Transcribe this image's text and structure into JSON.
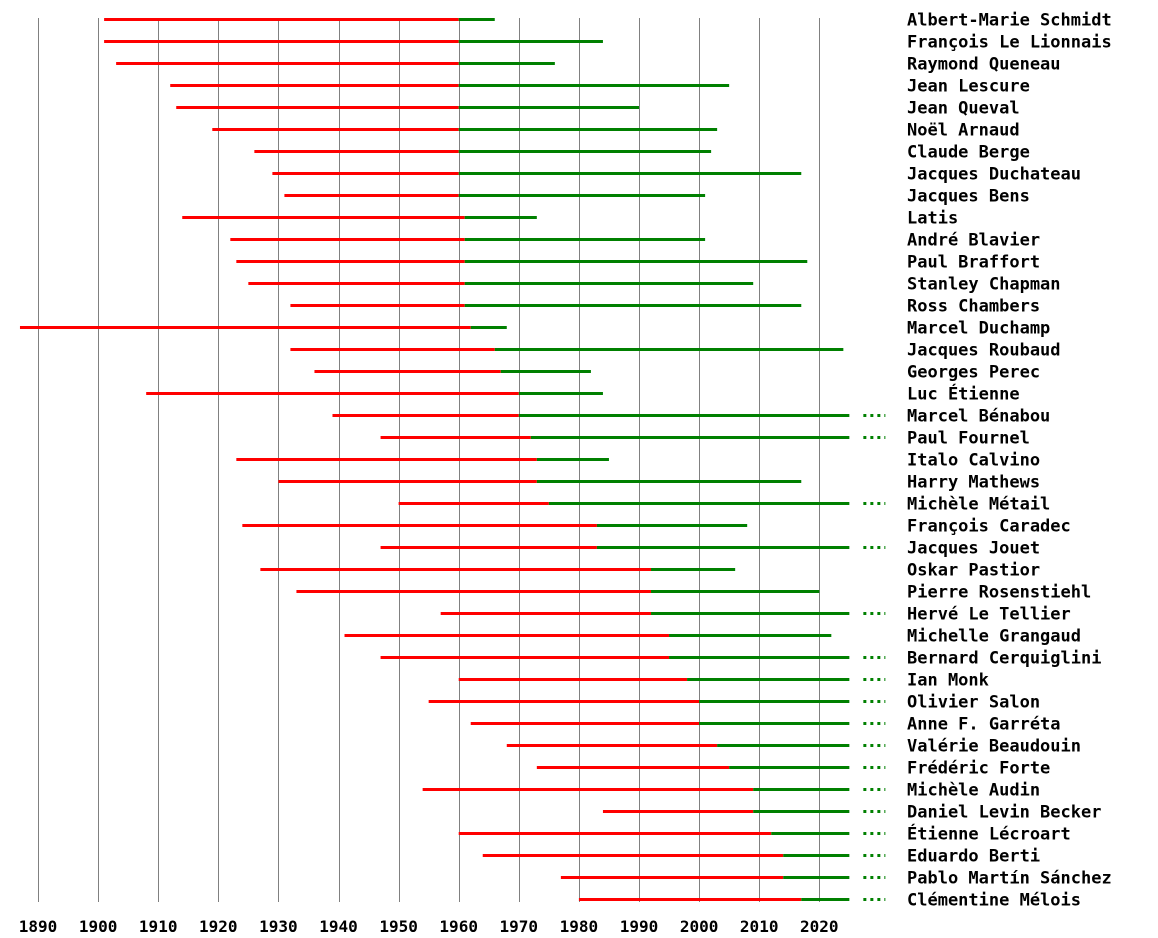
{
  "chart_data": {
    "type": "timeline",
    "x_ticks": [
      1890,
      1900,
      1910,
      1920,
      1930,
      1940,
      1950,
      1960,
      1970,
      1980,
      1990,
      2000,
      2010,
      2020
    ],
    "xlim": [
      1886,
      2025
    ],
    "grid": true,
    "colors": {
      "before_joining": "#ff0000",
      "member": "#008000"
    },
    "rows": [
      {
        "name": "Albert-Marie Schmidt",
        "birth": 1901,
        "joined": 1960,
        "died": 1966,
        "living": false
      },
      {
        "name": "François Le Lionnais",
        "birth": 1901,
        "joined": 1960,
        "died": 1984,
        "living": false
      },
      {
        "name": "Raymond Queneau",
        "birth": 1903,
        "joined": 1960,
        "died": 1976,
        "living": false
      },
      {
        "name": "Jean Lescure",
        "birth": 1912,
        "joined": 1960,
        "died": 2005,
        "living": false
      },
      {
        "name": "Jean Queval",
        "birth": 1913,
        "joined": 1960,
        "died": 1990,
        "living": false
      },
      {
        "name": "Noël Arnaud",
        "birth": 1919,
        "joined": 1960,
        "died": 2003,
        "living": false
      },
      {
        "name": "Claude Berge",
        "birth": 1926,
        "joined": 1960,
        "died": 2002,
        "living": false
      },
      {
        "name": "Jacques Duchateau",
        "birth": 1929,
        "joined": 1960,
        "died": 2017,
        "living": false
      },
      {
        "name": "Jacques Bens",
        "birth": 1931,
        "joined": 1960,
        "died": 2001,
        "living": false
      },
      {
        "name": "Latis",
        "birth": 1914,
        "joined": 1961,
        "died": 1973,
        "living": false
      },
      {
        "name": "André Blavier",
        "birth": 1922,
        "joined": 1961,
        "died": 2001,
        "living": false
      },
      {
        "name": "Paul Braffort",
        "birth": 1923,
        "joined": 1961,
        "died": 2018,
        "living": false
      },
      {
        "name": "Stanley Chapman",
        "birth": 1925,
        "joined": 1961,
        "died": 2009,
        "living": false
      },
      {
        "name": "Ross Chambers",
        "birth": 1932,
        "joined": 1961,
        "died": 2017,
        "living": false
      },
      {
        "name": "Marcel Duchamp",
        "birth": 1887,
        "joined": 1962,
        "died": 1968,
        "living": false
      },
      {
        "name": "Jacques Roubaud",
        "birth": 1932,
        "joined": 1966,
        "died": 2024,
        "living": false
      },
      {
        "name": "Georges Perec",
        "birth": 1936,
        "joined": 1967,
        "died": 1982,
        "living": false
      },
      {
        "name": "Luc Étienne",
        "birth": 1908,
        "joined": 1970,
        "died": 1984,
        "living": false
      },
      {
        "name": "Marcel Bénabou",
        "birth": 1939,
        "joined": 1970,
        "died": 2025,
        "living": true
      },
      {
        "name": "Paul Fournel",
        "birth": 1947,
        "joined": 1972,
        "died": 2025,
        "living": true
      },
      {
        "name": "Italo Calvino",
        "birth": 1923,
        "joined": 1973,
        "died": 1985,
        "living": false
      },
      {
        "name": "Harry Mathews",
        "birth": 1930,
        "joined": 1973,
        "died": 2017,
        "living": false
      },
      {
        "name": "Michèle Métail",
        "birth": 1950,
        "joined": 1975,
        "died": 2025,
        "living": true
      },
      {
        "name": "François Caradec",
        "birth": 1924,
        "joined": 1983,
        "died": 2008,
        "living": false
      },
      {
        "name": "Jacques Jouet",
        "birth": 1947,
        "joined": 1983,
        "died": 2025,
        "living": true
      },
      {
        "name": "Oskar Pastior",
        "birth": 1927,
        "joined": 1992,
        "died": 2006,
        "living": false
      },
      {
        "name": "Pierre Rosenstiehl",
        "birth": 1933,
        "joined": 1992,
        "died": 2020,
        "living": false
      },
      {
        "name": "Hervé Le Tellier",
        "birth": 1957,
        "joined": 1992,
        "died": 2025,
        "living": true
      },
      {
        "name": "Michelle Grangaud",
        "birth": 1941,
        "joined": 1995,
        "died": 2022,
        "living": false
      },
      {
        "name": "Bernard Cerquiglini",
        "birth": 1947,
        "joined": 1995,
        "died": 2025,
        "living": true
      },
      {
        "name": "Ian Monk",
        "birth": 1960,
        "joined": 1998,
        "died": 2025,
        "living": true
      },
      {
        "name": "Olivier Salon",
        "birth": 1955,
        "joined": 2000,
        "died": 2025,
        "living": true
      },
      {
        "name": "Anne F. Garréta",
        "birth": 1962,
        "joined": 2000,
        "died": 2025,
        "living": true
      },
      {
        "name": "Valérie Beaudouin",
        "birth": 1968,
        "joined": 2003,
        "died": 2025,
        "living": true
      },
      {
        "name": "Frédéric Forte",
        "birth": 1973,
        "joined": 2005,
        "died": 2025,
        "living": true
      },
      {
        "name": "Michèle Audin",
        "birth": 1954,
        "joined": 2009,
        "died": 2025,
        "living": true
      },
      {
        "name": "Daniel Levin Becker",
        "birth": 1984,
        "joined": 2009,
        "died": 2025,
        "living": true
      },
      {
        "name": "Étienne Lécroart",
        "birth": 1960,
        "joined": 2012,
        "died": 2025,
        "living": true
      },
      {
        "name": "Eduardo Berti",
        "birth": 1964,
        "joined": 2014,
        "died": 2025,
        "living": true
      },
      {
        "name": "Pablo Martín Sánchez",
        "birth": 1977,
        "joined": 2014,
        "died": 2025,
        "living": true
      },
      {
        "name": "Clémentine Mélois",
        "birth": 1980,
        "joined": 2017,
        "died": 2025,
        "living": true
      }
    ]
  }
}
